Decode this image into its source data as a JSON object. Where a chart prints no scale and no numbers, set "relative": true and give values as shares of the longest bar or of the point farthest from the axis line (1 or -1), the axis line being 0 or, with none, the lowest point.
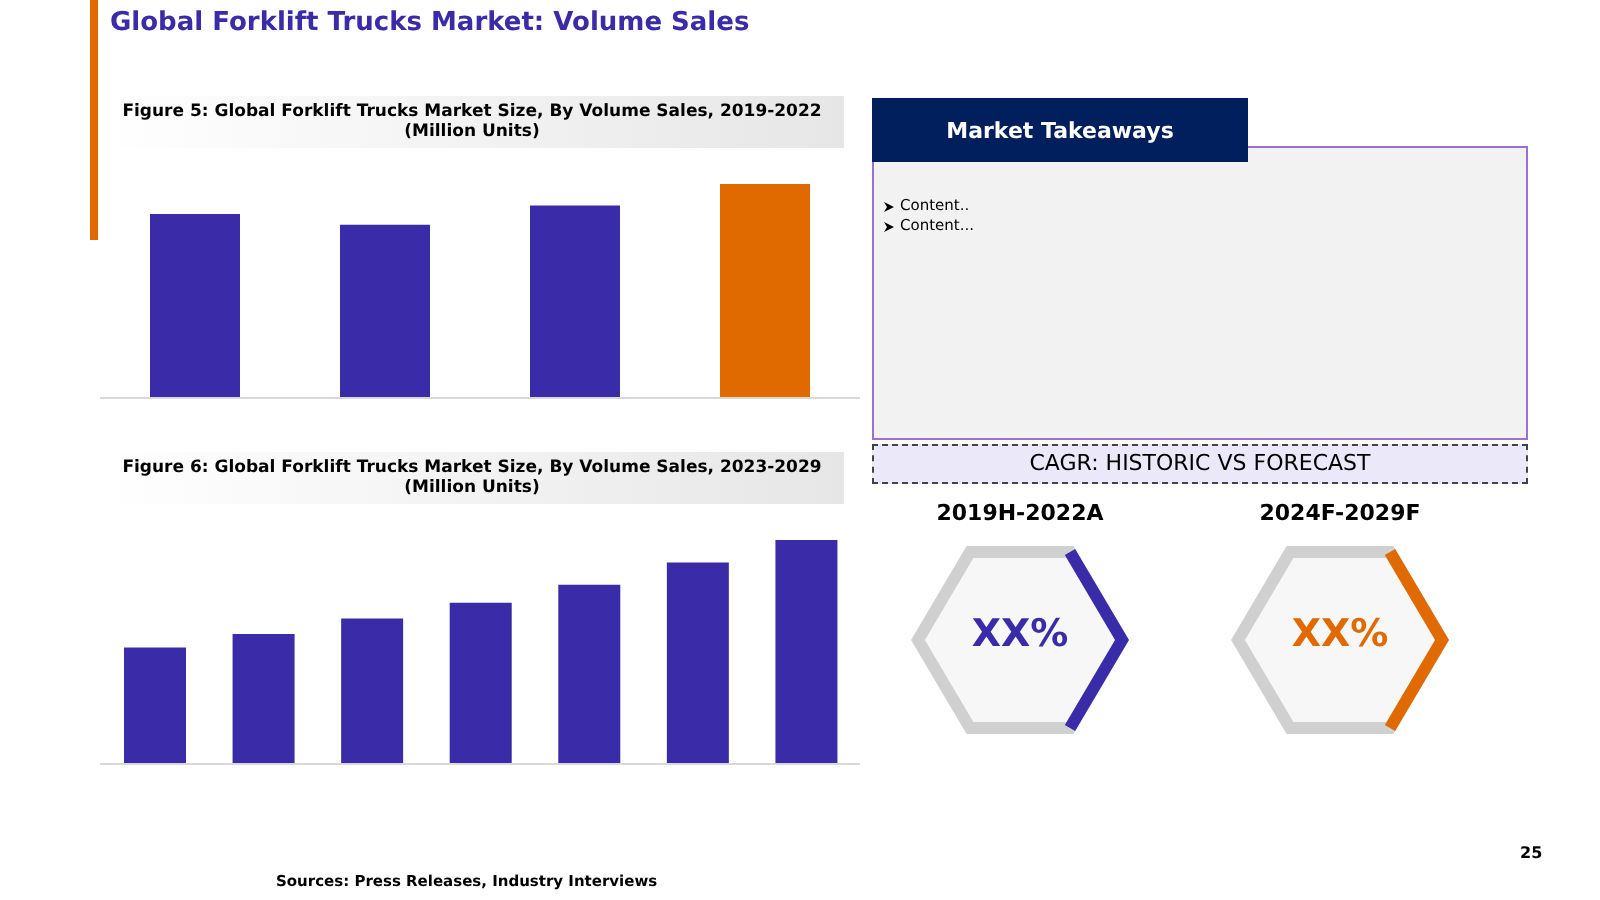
{
  "chart_data": [
    {
      "type": "bar",
      "title": "Global Forklift Trucks Market: Volume Sales",
      "subtitle": "Figure 5: Global Forklift Trucks Market Size, By Volume Sales, 2019-2022\n(Million Units)",
      "categories": [
        null,
        null,
        null,
        null
      ],
      "values": [
        0.86,
        0.81,
        0.9,
        1
      ],
      "colors": [
        "#3a2ca8",
        "#3a2ca8",
        "#3a2ca8",
        "#e06a00"
      ],
      "relative": true
    },
    {
      "type": "bar",
      "subtitle": "Figure 6: Global Forklift Trucks Market Size, By Volume Sales, 2023-2029\n(Million Units)",
      "categories": [
        null,
        null,
        null,
        null,
        null,
        null,
        null
      ],
      "values": [
        0.52,
        0.58,
        0.65,
        0.72,
        0.8,
        0.9,
        1
      ],
      "color": "#3a2ca8",
      "relative": true,
      "annotations": [
        "Sources: Press Releases, Industry Interviews"
      ]
    },
    {
      "type": "other",
      "title": "Market Takeaways",
      "subtitle": "CAGR: HISTORIC VS FORECAST",
      "annotations": [
        "Content..",
        "Content...",
        "2019H-2022A",
        "2024F-2029F",
        "XX%",
        "XX%",
        "25"
      ]
    }
  ]
}
